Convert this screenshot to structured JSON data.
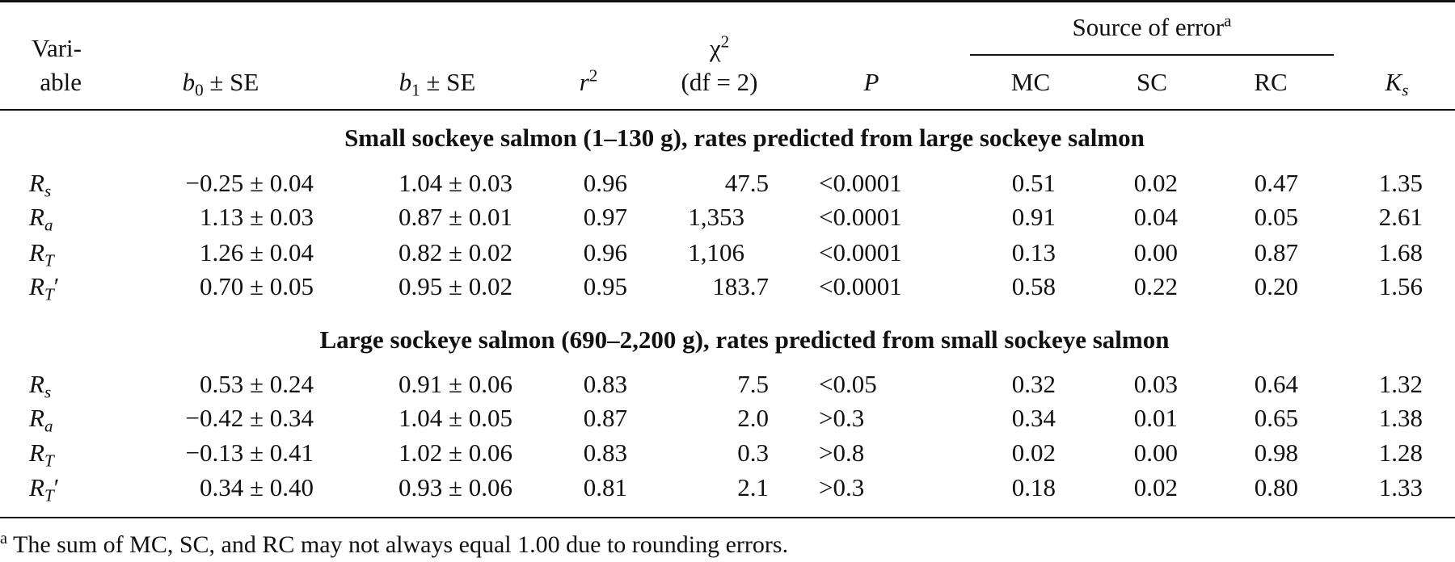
{
  "header": {
    "variable_line1": "Vari-",
    "variable_line2": "able",
    "b0_sym": "b",
    "b0_sub": "0",
    "b0_rest": " ± SE",
    "b1_sym": "b",
    "b1_sub": "1",
    "b1_rest": " ± SE",
    "r2_sym": "r",
    "r2_sup": "2",
    "chi_sym": "χ",
    "chi_sup": "2",
    "chi_df": "(df = 2)",
    "p": "P",
    "source_of_error": "Source of error",
    "source_sup": "a",
    "mc": "MC",
    "sc": "SC",
    "rc": "RC",
    "ks_sym": "K",
    "ks_sub": "s"
  },
  "sections": [
    {
      "title": "Small sockeye salmon (1–130 g), rates predicted from large sockeye salmon",
      "rows": [
        {
          "var_sym": "R",
          "var_sub": "s",
          "prime": "",
          "b0": "−0.25 ± 0.04",
          "b1": "1.04 ± 0.03",
          "r2": "0.96",
          "chi2": "47.5",
          "p": "<0.0001",
          "mc": "0.51",
          "sc": "0.02",
          "rc": "0.47",
          "ks": "1.35"
        },
        {
          "var_sym": "R",
          "var_sub": "a",
          "prime": "",
          "b0": "1.13 ± 0.03",
          "b1": "0.87 ± 0.01",
          "r2": "0.97",
          "chi2": "1,353",
          "p": "<0.0001",
          "mc": "0.91",
          "sc": "0.04",
          "rc": "0.05",
          "ks": "2.61"
        },
        {
          "var_sym": "R",
          "var_sub": "T",
          "prime": "",
          "b0": "1.26 ± 0.04",
          "b1": "0.82 ± 0.02",
          "r2": "0.96",
          "chi2": "1,106",
          "p": "<0.0001",
          "mc": "0.13",
          "sc": "0.00",
          "rc": "0.87",
          "ks": "1.68"
        },
        {
          "var_sym": "R",
          "var_sub": "T",
          "prime": "′",
          "b0": "0.70 ± 0.05",
          "b1": "0.95 ± 0.02",
          "r2": "0.95",
          "chi2": "183.7",
          "p": "<0.0001",
          "mc": "0.58",
          "sc": "0.22",
          "rc": "0.20",
          "ks": "1.56"
        }
      ]
    },
    {
      "title": "Large sockeye salmon (690–2,200 g), rates predicted from small sockeye salmon",
      "rows": [
        {
          "var_sym": "R",
          "var_sub": "s",
          "prime": "",
          "b0": "0.53 ± 0.24",
          "b1": "0.91 ± 0.06",
          "r2": "0.83",
          "chi2": "7.5",
          "p": "<0.05",
          "mc": "0.32",
          "sc": "0.03",
          "rc": "0.64",
          "ks": "1.32"
        },
        {
          "var_sym": "R",
          "var_sub": "a",
          "prime": "",
          "b0": "−0.42 ± 0.34",
          "b1": "1.04 ± 0.05",
          "r2": "0.87",
          "chi2": "2.0",
          "p": ">0.3",
          "mc": "0.34",
          "sc": "0.01",
          "rc": "0.65",
          "ks": "1.38"
        },
        {
          "var_sym": "R",
          "var_sub": "T",
          "prime": "",
          "b0": "−0.13 ± 0.41",
          "b1": "1.02 ± 0.06",
          "r2": "0.83",
          "chi2": "0.3",
          "p": ">0.8",
          "mc": "0.02",
          "sc": "0.00",
          "rc": "0.98",
          "ks": "1.28"
        },
        {
          "var_sym": "R",
          "var_sub": "T",
          "prime": "′",
          "b0": "0.34 ± 0.40",
          "b1": "0.93 ± 0.06",
          "r2": "0.81",
          "chi2": "2.1",
          "p": ">0.3",
          "mc": "0.18",
          "sc": "0.02",
          "rc": "0.80",
          "ks": "1.33"
        }
      ]
    }
  ],
  "footnote": {
    "marker": "a",
    "text": " The sum of MC, SC, and RC may not always equal 1.00 due to rounding errors."
  }
}
